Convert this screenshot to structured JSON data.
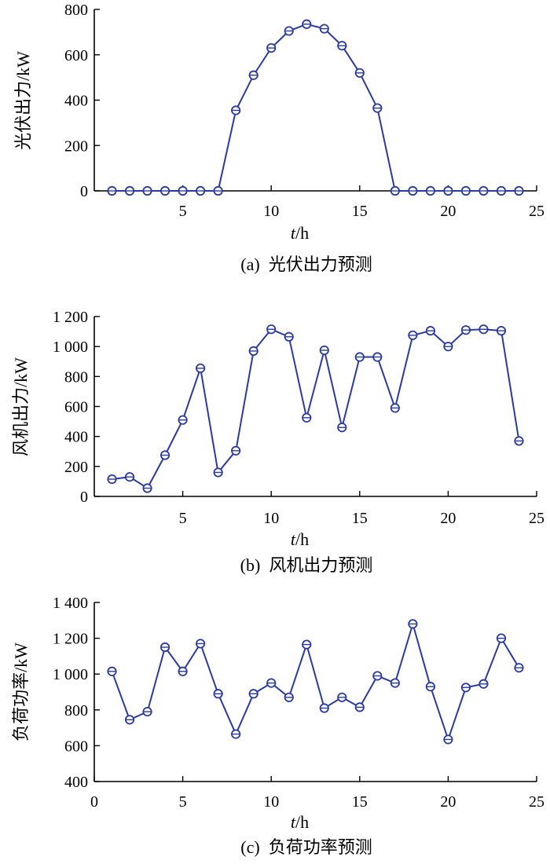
{
  "chart_data": [
    {
      "type": "line",
      "caption": "(a)  光伏出力预测",
      "xlabel_var": "t",
      "xlabel_unit": "/h",
      "ylabel": "光伏出力/kW",
      "xlim": [
        0,
        25
      ],
      "ylim": [
        0,
        800
      ],
      "xticks": [
        5,
        10,
        15,
        20,
        25
      ],
      "yticks": [
        0,
        200,
        400,
        600,
        800
      ],
      "ytick_labels": [
        "0",
        "200",
        "400",
        "600",
        "800"
      ],
      "x": [
        1,
        2,
        3,
        4,
        5,
        6,
        7,
        8,
        9,
        10,
        11,
        12,
        13,
        14,
        15,
        16,
        17,
        18,
        19,
        20,
        21,
        22,
        23,
        24
      ],
      "series": [
        {
          "values": [
            0,
            0,
            0,
            0,
            0,
            0,
            0,
            355,
            510,
            630,
            705,
            735,
            715,
            640,
            520,
            365,
            0,
            0,
            0,
            0,
            0,
            0,
            0,
            0
          ]
        }
      ]
    },
    {
      "type": "line",
      "caption": "(b)  风机出力预测",
      "xlabel_var": "t",
      "xlabel_unit": "/h",
      "ylabel": "风机出力/kW",
      "xlim": [
        0,
        25
      ],
      "ylim": [
        0,
        1200
      ],
      "xticks": [
        5,
        10,
        15,
        20,
        25
      ],
      "yticks": [
        0,
        200,
        400,
        600,
        800,
        1000,
        1200
      ],
      "ytick_labels": [
        "0",
        "200",
        "400",
        "600",
        "800",
        "1 000",
        "1 200"
      ],
      "x": [
        1,
        2,
        3,
        4,
        5,
        6,
        7,
        8,
        9,
        10,
        11,
        12,
        13,
        14,
        15,
        16,
        17,
        18,
        19,
        20,
        21,
        22,
        23,
        24
      ],
      "series": [
        {
          "values": [
            115,
            130,
            55,
            275,
            510,
            855,
            160,
            305,
            970,
            1115,
            1065,
            525,
            975,
            460,
            930,
            930,
            590,
            1075,
            1105,
            1000,
            1110,
            1115,
            1105,
            370
          ]
        }
      ]
    },
    {
      "type": "line",
      "caption": "(c)  负荷功率预测",
      "xlabel_var": "t",
      "xlabel_unit": "/h",
      "ylabel": "负荷功率/kW",
      "xlim": [
        0,
        25
      ],
      "ylim": [
        400,
        1400
      ],
      "xticks": [
        0,
        5,
        10,
        15,
        20,
        25
      ],
      "yticks": [
        400,
        600,
        800,
        1000,
        1200,
        1400
      ],
      "ytick_labels": [
        "400",
        "600",
        "800",
        "1 000",
        "1 200",
        "1 400"
      ],
      "x": [
        1,
        2,
        3,
        4,
        5,
        6,
        7,
        8,
        9,
        10,
        11,
        12,
        13,
        14,
        15,
        16,
        17,
        18,
        19,
        20,
        21,
        22,
        23,
        24
      ],
      "series": [
        {
          "values": [
            1015,
            745,
            790,
            1150,
            1015,
            1170,
            890,
            665,
            890,
            950,
            870,
            1165,
            810,
            870,
            815,
            990,
            950,
            1280,
            930,
            635,
            925,
            945,
            1200,
            1035
          ]
        }
      ]
    }
  ],
  "colors": {
    "series": "#2b3a9e",
    "axis": "#000000"
  }
}
